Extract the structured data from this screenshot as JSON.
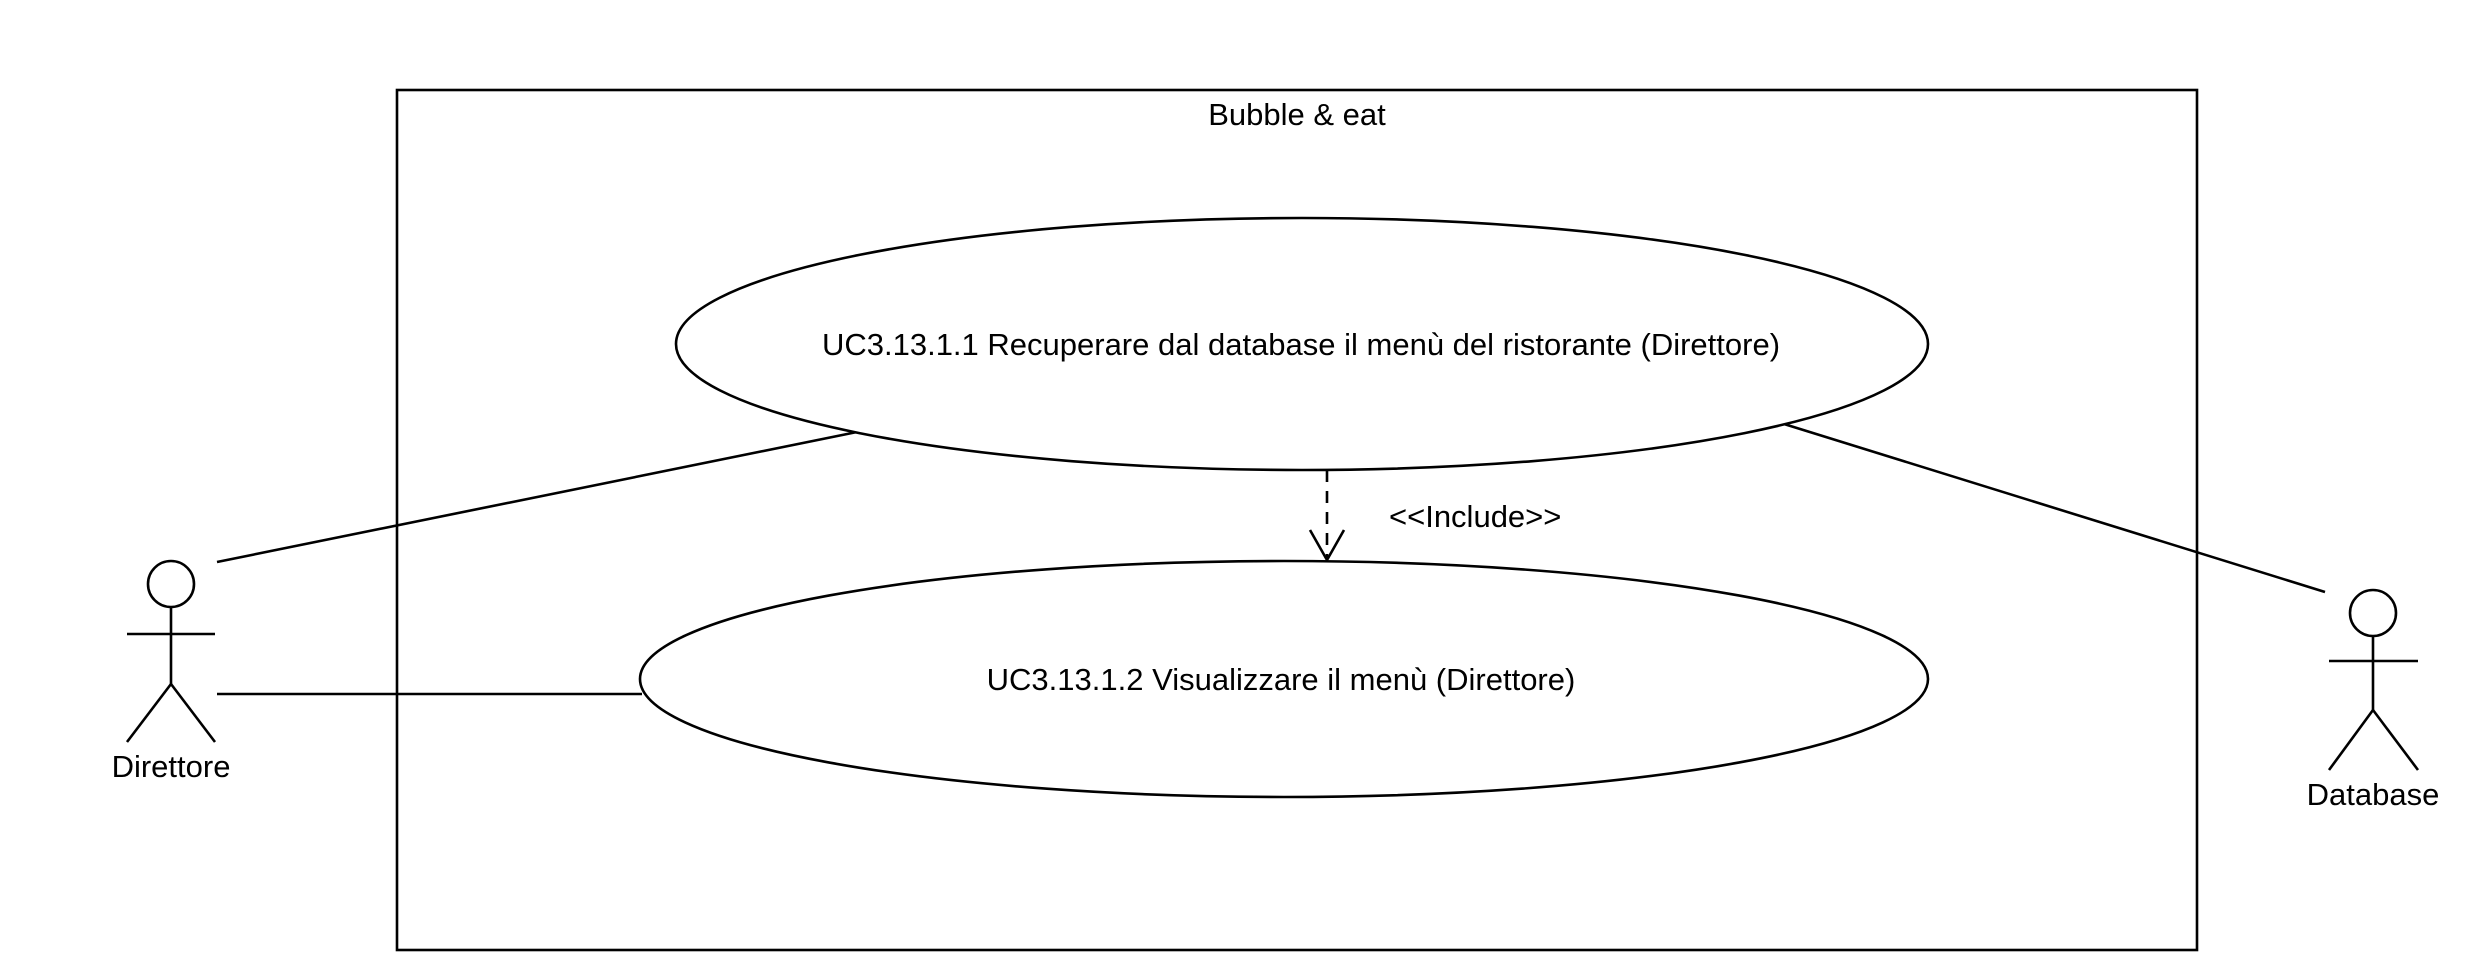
{
  "system": {
    "name": "Bubble & eat"
  },
  "use_cases": [
    {
      "label": "UC3.13.1.1 Recuperare dal database il menù del ristorante (Direttore)"
    },
    {
      "label": "UC3.13.1.2 Visualizzare il menù (Direttore)"
    }
  ],
  "relationships": {
    "include_label": "<<Include>>"
  },
  "actors": [
    {
      "name": "Direttore"
    },
    {
      "name": "Database"
    }
  ]
}
